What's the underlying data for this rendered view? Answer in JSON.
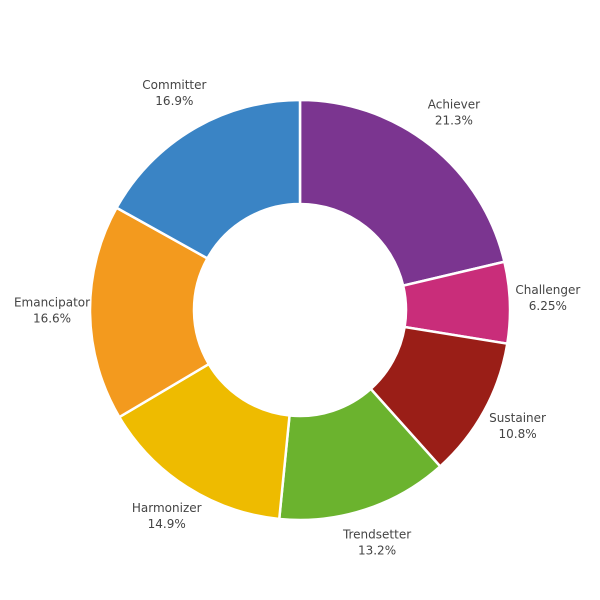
{
  "chart_data": {
    "type": "donut",
    "categories": [
      "Achiever",
      "Challenger",
      "Sustainer",
      "Trendsetter",
      "Harmonizer",
      "Emancipator",
      "Committer"
    ],
    "values": [
      21.3,
      6.25,
      10.8,
      13.2,
      14.9,
      16.6,
      16.9
    ],
    "value_labels": [
      "21.3%",
      "6.25%",
      "10.8%",
      "13.2%",
      "14.9%",
      "16.6%",
      "16.9%"
    ],
    "colors": [
      "#7b3590",
      "#c92d7a",
      "#9a1e17",
      "#6bb32e",
      "#eebb00",
      "#f39a1e",
      "#3a84c5"
    ]
  }
}
